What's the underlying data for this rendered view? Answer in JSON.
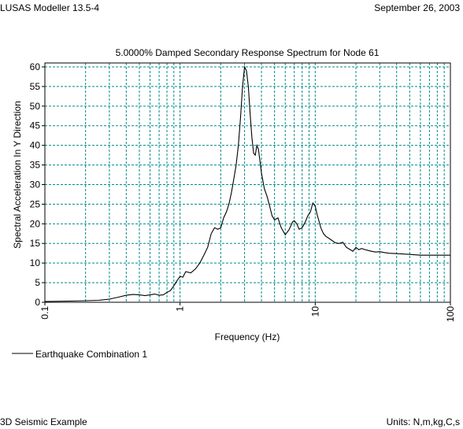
{
  "header": {
    "app": "LUSAS Modeller 13.5-4",
    "date": "September 26, 2003"
  },
  "footer": {
    "model": "3D Seismic Example",
    "units": "Units: N,m,kg,C,s"
  },
  "chart_data": {
    "type": "line",
    "title": "5.0000% Damped Secondary Response Spectrum for Node 61",
    "xlabel": "Frequency (Hz)",
    "ylabel": "Spectral Acceleration In Y Direction",
    "xscale": "log",
    "xlim": [
      0.1,
      100
    ],
    "ylim": [
      0,
      61
    ],
    "x_ticks": [
      "0.1",
      "1",
      "10",
      "100"
    ],
    "y_ticks": [
      "0",
      "5",
      "10",
      "15",
      "20",
      "25",
      "30",
      "35",
      "40",
      "45",
      "50",
      "55",
      "60"
    ],
    "grid": true,
    "grid_style": "dashed",
    "grid_color": "#008b8b",
    "line_color": "#000000",
    "legend_position": "bottom-left",
    "series": [
      {
        "name": "Earthquake Combination 1",
        "x": [
          0.1,
          0.15,
          0.2,
          0.25,
          0.3,
          0.35,
          0.4,
          0.45,
          0.5,
          0.55,
          0.6,
          0.65,
          0.7,
          0.75,
          0.8,
          0.85,
          0.9,
          0.95,
          1.0,
          1.05,
          1.1,
          1.2,
          1.3,
          1.4,
          1.5,
          1.6,
          1.7,
          1.8,
          1.9,
          2.0,
          2.1,
          2.2,
          2.3,
          2.4,
          2.5,
          2.6,
          2.7,
          2.8,
          2.9,
          3.0,
          3.1,
          3.2,
          3.3,
          3.4,
          3.5,
          3.6,
          3.7,
          3.8,
          3.9,
          4.0,
          4.2,
          4.4,
          4.6,
          4.8,
          5.0,
          5.3,
          5.6,
          6.0,
          6.4,
          6.8,
          7.0,
          7.3,
          7.6,
          8.0,
          8.4,
          8.8,
          9.2,
          9.6,
          10.0,
          10.3,
          10.6,
          11.0,
          11.5,
          12.0,
          13.0,
          14.0,
          15.0,
          16.0,
          17.0,
          18.0,
          19.0,
          20.0,
          21.0,
          22.0,
          24.0,
          26.0,
          28.0,
          30.0,
          32.0,
          35.0,
          40.0,
          45.0,
          50.0,
          60.0,
          70.0,
          80.0,
          90.0,
          100.0
        ],
        "y": [
          0.2,
          0.3,
          0.4,
          0.5,
          0.8,
          1.3,
          1.8,
          2.0,
          1.9,
          1.7,
          1.9,
          2.1,
          1.8,
          1.9,
          2.5,
          3.0,
          4.2,
          5.5,
          6.6,
          6.4,
          7.8,
          7.5,
          8.5,
          10.0,
          12.0,
          14.0,
          17.5,
          19.0,
          18.6,
          19.0,
          21.5,
          23.0,
          25.0,
          28.0,
          31.5,
          35.0,
          40.0,
          47.0,
          55.0,
          60.0,
          59.0,
          55.0,
          48.0,
          42.0,
          38.0,
          37.5,
          40.0,
          39.0,
          36.0,
          33.0,
          29.0,
          27.0,
          24.5,
          22.0,
          21.0,
          21.5,
          19.0,
          17.2,
          18.5,
          20.5,
          20.8,
          20.0,
          18.6,
          19.0,
          20.3,
          22.0,
          23.0,
          25.3,
          24.5,
          22.5,
          21.0,
          19.0,
          17.5,
          16.8,
          16.0,
          15.2,
          15.0,
          15.3,
          14.0,
          13.5,
          13.0,
          14.0,
          13.4,
          13.7,
          13.3,
          13.0,
          12.8,
          12.9,
          12.7,
          12.5,
          12.4,
          12.3,
          12.2,
          12.0,
          12.0,
          12.0,
          12.0,
          12.0
        ]
      }
    ]
  }
}
